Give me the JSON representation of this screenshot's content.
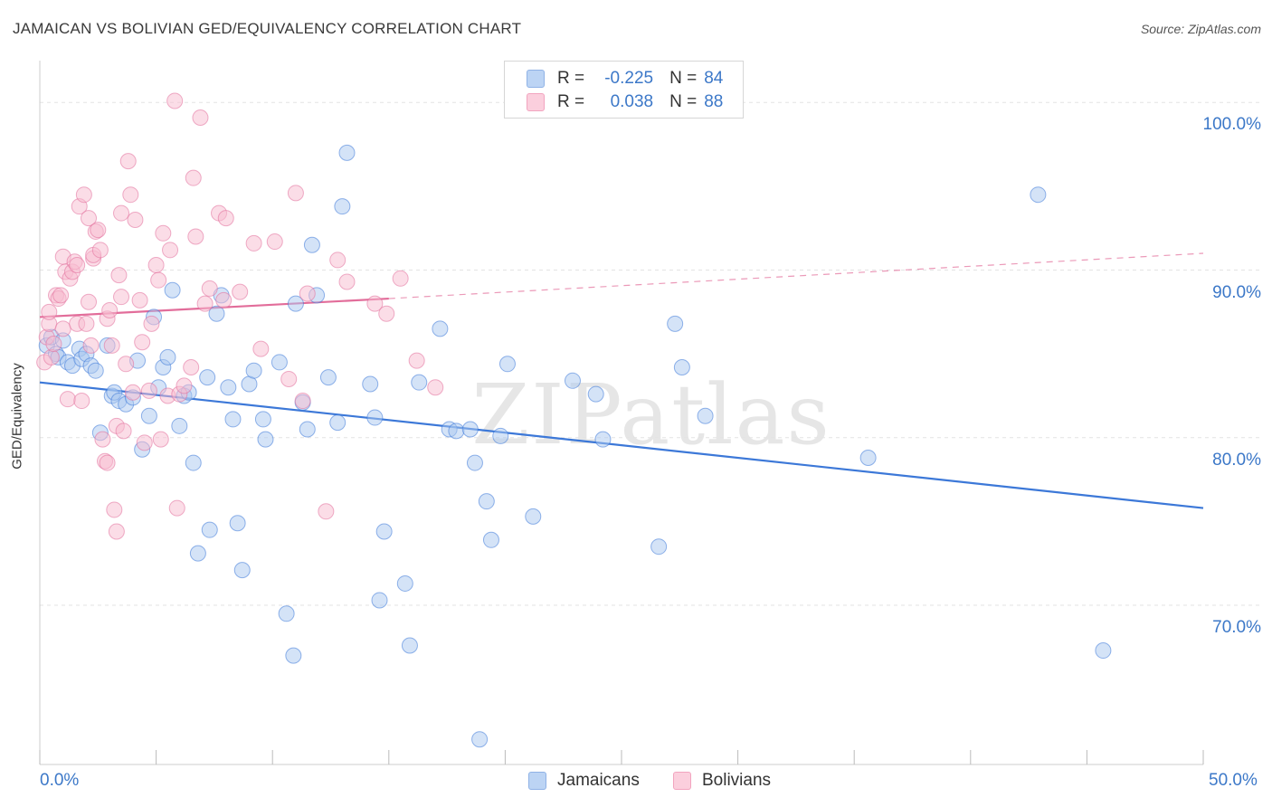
{
  "title": "JAMAICAN VS BOLIVIAN GED/EQUIVALENCY CORRELATION CHART",
  "source": "Source: ZipAtlas.com",
  "watermark": "ZIPatlas",
  "legend": {
    "r_label": "R =",
    "n_label": "N =",
    "rows": [
      {
        "r": "-0.225",
        "n": "84",
        "color": "#9ec0ee"
      },
      {
        "r": "0.038",
        "n": "88",
        "color": "#f5b0c7"
      }
    ]
  },
  "chart_data": {
    "type": "scatter",
    "title": "JAMAICAN VS BOLIVIAN GED/EQUIVALENCY CORRELATION CHART",
    "xlabel": "",
    "ylabel": "GED/Equivalency",
    "xlim": [
      0,
      50
    ],
    "ylim": [
      60.5,
      102.5
    ],
    "x_tick_labels": [
      "0.0%",
      "50.0%"
    ],
    "y_ticks": [
      70,
      80,
      90,
      100
    ],
    "y_tick_labels": [
      "70.0%",
      "80.0%",
      "90.0%",
      "100.0%"
    ],
    "grid": true,
    "series": [
      {
        "name": "Jamaicans",
        "color": "#3c78d8",
        "fill": "#a9c8f0",
        "trend": {
          "x0": 0,
          "y0": 83.3,
          "x1": 50,
          "y1": 75.8
        },
        "points": [
          [
            0.3,
            85.5
          ],
          [
            0.5,
            86
          ],
          [
            0.7,
            85
          ],
          [
            0.8,
            84.8
          ],
          [
            1.0,
            85.8
          ],
          [
            1.2,
            84.5
          ],
          [
            1.4,
            84.3
          ],
          [
            1.7,
            85.3
          ],
          [
            1.8,
            84.7
          ],
          [
            2.0,
            85.0
          ],
          [
            2.2,
            84.3
          ],
          [
            2.4,
            84.0
          ],
          [
            2.6,
            80.3
          ],
          [
            2.9,
            85.5
          ],
          [
            3.1,
            82.5
          ],
          [
            3.2,
            82.7
          ],
          [
            3.4,
            82.2
          ],
          [
            3.7,
            82.0
          ],
          [
            4.0,
            82.4
          ],
          [
            4.2,
            84.6
          ],
          [
            4.4,
            79.3
          ],
          [
            4.7,
            81.3
          ],
          [
            4.9,
            87.2
          ],
          [
            5.1,
            83.0
          ],
          [
            5.3,
            84.2
          ],
          [
            5.5,
            84.8
          ],
          [
            5.7,
            88.8
          ],
          [
            6.0,
            80.7
          ],
          [
            6.2,
            82.5
          ],
          [
            6.4,
            82.7
          ],
          [
            6.6,
            78.5
          ],
          [
            6.8,
            73.1
          ],
          [
            7.2,
            83.6
          ],
          [
            7.3,
            74.5
          ],
          [
            7.6,
            87.4
          ],
          [
            7.8,
            88.5
          ],
          [
            8.1,
            83.0
          ],
          [
            8.3,
            81.1
          ],
          [
            8.5,
            74.9
          ],
          [
            8.7,
            72.1
          ],
          [
            9.0,
            83.2
          ],
          [
            9.2,
            84.0
          ],
          [
            9.6,
            81.1
          ],
          [
            9.7,
            79.9
          ],
          [
            10.3,
            84.5
          ],
          [
            10.6,
            69.5
          ],
          [
            10.9,
            67.0
          ],
          [
            11.0,
            88.0
          ],
          [
            11.3,
            82.1
          ],
          [
            11.5,
            80.5
          ],
          [
            11.7,
            91.5
          ],
          [
            11.9,
            88.5
          ],
          [
            12.4,
            83.6
          ],
          [
            12.8,
            80.9
          ],
          [
            13.0,
            93.8
          ],
          [
            13.2,
            97.0
          ],
          [
            14.2,
            83.2
          ],
          [
            14.4,
            81.2
          ],
          [
            14.6,
            70.3
          ],
          [
            14.8,
            74.4
          ],
          [
            15.7,
            71.3
          ],
          [
            15.9,
            67.6
          ],
          [
            16.3,
            83.3
          ],
          [
            17.2,
            86.5
          ],
          [
            17.6,
            80.5
          ],
          [
            17.9,
            80.4
          ],
          [
            18.5,
            80.5
          ],
          [
            18.7,
            78.5
          ],
          [
            18.9,
            62.0
          ],
          [
            19.2,
            76.2
          ],
          [
            19.4,
            73.9
          ],
          [
            19.8,
            80.1
          ],
          [
            20.1,
            84.4
          ],
          [
            21.2,
            75.3
          ],
          [
            22.9,
            83.4
          ],
          [
            23.9,
            82.6
          ],
          [
            24.2,
            79.9
          ],
          [
            26.6,
            73.5
          ],
          [
            27.3,
            86.8
          ],
          [
            27.6,
            84.2
          ],
          [
            28.6,
            81.3
          ],
          [
            35.6,
            78.8
          ],
          [
            42.9,
            94.5
          ],
          [
            45.7,
            67.3
          ]
        ]
      },
      {
        "name": "Bolivians",
        "color": "#e26d9a",
        "fill": "#f7bcd0",
        "trend": {
          "x0": 0,
          "y0": 87.2,
          "x1": 15,
          "y1": 88.3,
          "dashed_to": {
            "x": 50,
            "y": 91.0
          }
        },
        "points": [
          [
            0.2,
            84.5
          ],
          [
            0.3,
            86.0
          ],
          [
            0.4,
            86.8
          ],
          [
            0.4,
            87.5
          ],
          [
            0.5,
            84.8
          ],
          [
            0.6,
            85.6
          ],
          [
            0.7,
            88.5
          ],
          [
            0.8,
            88.3
          ],
          [
            0.9,
            88.5
          ],
          [
            1.0,
            86.5
          ],
          [
            1.0,
            90.8
          ],
          [
            1.1,
            89.9
          ],
          [
            1.2,
            82.3
          ],
          [
            1.3,
            89.5
          ],
          [
            1.4,
            89.9
          ],
          [
            1.5,
            90.5
          ],
          [
            1.6,
            86.8
          ],
          [
            1.6,
            90.3
          ],
          [
            1.7,
            93.8
          ],
          [
            1.8,
            82.2
          ],
          [
            1.9,
            94.5
          ],
          [
            2.0,
            86.8
          ],
          [
            2.1,
            88.1
          ],
          [
            2.1,
            93.1
          ],
          [
            2.2,
            85.5
          ],
          [
            2.3,
            90.7
          ],
          [
            2.3,
            90.9
          ],
          [
            2.4,
            92.3
          ],
          [
            2.5,
            92.4
          ],
          [
            2.6,
            91.2
          ],
          [
            2.7,
            79.9
          ],
          [
            2.8,
            78.6
          ],
          [
            2.9,
            78.5
          ],
          [
            2.9,
            87.1
          ],
          [
            3.0,
            87.6
          ],
          [
            3.1,
            85.5
          ],
          [
            3.2,
            75.7
          ],
          [
            3.3,
            74.4
          ],
          [
            3.3,
            80.7
          ],
          [
            3.4,
            89.7
          ],
          [
            3.5,
            88.4
          ],
          [
            3.5,
            93.4
          ],
          [
            3.6,
            80.4
          ],
          [
            3.7,
            84.4
          ],
          [
            3.8,
            96.5
          ],
          [
            3.9,
            94.5
          ],
          [
            4.0,
            82.7
          ],
          [
            4.1,
            93.0
          ],
          [
            4.3,
            88.2
          ],
          [
            4.4,
            85.7
          ],
          [
            4.5,
            79.7
          ],
          [
            4.7,
            82.8
          ],
          [
            4.8,
            86.8
          ],
          [
            5.0,
            90.3
          ],
          [
            5.1,
            89.4
          ],
          [
            5.2,
            79.9
          ],
          [
            5.3,
            92.2
          ],
          [
            5.5,
            82.5
          ],
          [
            5.6,
            91.2
          ],
          [
            5.8,
            100.1
          ],
          [
            5.9,
            75.8
          ],
          [
            6.0,
            82.6
          ],
          [
            6.2,
            83.1
          ],
          [
            6.5,
            84.2
          ],
          [
            6.6,
            95.5
          ],
          [
            6.7,
            92.0
          ],
          [
            6.9,
            99.1
          ],
          [
            7.1,
            88.0
          ],
          [
            7.3,
            88.9
          ],
          [
            7.7,
            93.4
          ],
          [
            7.9,
            88.2
          ],
          [
            8.0,
            93.1
          ],
          [
            8.6,
            88.7
          ],
          [
            9.2,
            91.6
          ],
          [
            9.5,
            85.3
          ],
          [
            10.1,
            91.7
          ],
          [
            10.7,
            83.5
          ],
          [
            11.0,
            94.6
          ],
          [
            11.3,
            82.2
          ],
          [
            11.5,
            88.6
          ],
          [
            12.3,
            75.6
          ],
          [
            12.8,
            90.6
          ],
          [
            13.2,
            89.3
          ],
          [
            14.4,
            88.0
          ],
          [
            14.9,
            87.4
          ],
          [
            15.5,
            89.5
          ],
          [
            16.2,
            84.6
          ],
          [
            17.0,
            83.0
          ]
        ]
      }
    ]
  },
  "bottom_legend": [
    "Jamaicans",
    "Bolivians"
  ]
}
